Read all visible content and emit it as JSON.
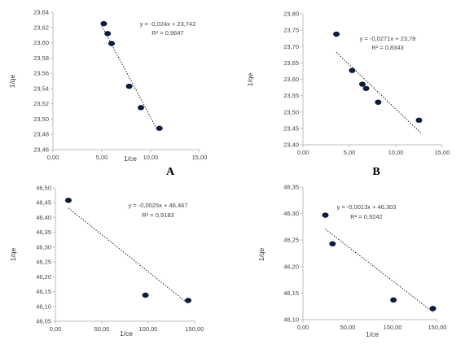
{
  "chart_data": [
    {
      "type": "scatter",
      "panel_label": "A",
      "xlabel": "1/ce",
      "ylabel": "1/qe",
      "xlim": [
        0,
        15
      ],
      "ylim": [
        23.46,
        23.64
      ],
      "xticks": [
        "0,00",
        "5,00",
        "10,00",
        "15,00"
      ],
      "xtick_values": [
        0,
        5,
        10,
        15
      ],
      "yticks": [
        "23,46",
        "23,48",
        "23,50",
        "23,52",
        "23,54",
        "23,56",
        "23,58",
        "23,60",
        "23,62",
        "23,64"
      ],
      "ytick_values": [
        23.46,
        23.48,
        23.5,
        23.52,
        23.54,
        23.56,
        23.58,
        23.6,
        23.62,
        23.64
      ],
      "equation": "y = -0,024x + 23,742",
      "r2": "R² = 0,9647",
      "trend": {
        "slope": -0.024,
        "intercept": 23.742,
        "x_range": [
          5.0,
          10.7
        ]
      },
      "series": [
        {
          "x": [
            5.2,
            5.6,
            6.0,
            7.8,
            9.0,
            10.9
          ],
          "y": [
            23.625,
            23.612,
            23.599,
            23.543,
            23.515,
            23.488
          ]
        }
      ],
      "grid": false
    },
    {
      "type": "scatter",
      "panel_label": "B",
      "xlabel": "1/ce",
      "ylabel": "1/qe",
      "xlim": [
        0,
        15
      ],
      "ylim": [
        23.4,
        23.8
      ],
      "xticks": [
        "0,00",
        "5,00",
        "10,00",
        "15,00"
      ],
      "xtick_values": [
        0,
        5,
        10,
        15
      ],
      "yticks": [
        "23,40",
        "23,45",
        "23,50",
        "23,55",
        "23,60",
        "23,65",
        "23,70",
        "23,75",
        "23,80"
      ],
      "ytick_values": [
        23.4,
        23.45,
        23.5,
        23.55,
        23.6,
        23.65,
        23.7,
        23.75,
        23.8
      ],
      "equation": "y = -0,0271x + 23,78",
      "r2": "R² = 0,8343",
      "trend": {
        "slope": -0.0271,
        "intercept": 23.78,
        "x_range": [
          3.6,
          12.7
        ]
      },
      "series": [
        {
          "x": [
            3.6,
            5.3,
            6.4,
            6.8,
            8.1,
            12.5
          ],
          "y": [
            23.738,
            23.627,
            23.585,
            23.572,
            23.53,
            23.475
          ]
        }
      ],
      "grid": false
    },
    {
      "type": "scatter",
      "panel_label": "",
      "xlabel": "1/ce",
      "ylabel": "1/qe",
      "xlim": [
        0,
        150
      ],
      "ylim": [
        46.05,
        46.5
      ],
      "xticks": [
        "0,00",
        "50,00",
        "100,00",
        "150,00"
      ],
      "xtick_values": [
        0,
        50,
        100,
        150
      ],
      "yticks": [
        "46,05",
        "46,10",
        "46,15",
        "46,20",
        "46,25",
        "46,30",
        "46,35",
        "46,40",
        "46,45",
        "46,50"
      ],
      "ytick_values": [
        46.05,
        46.1,
        46.15,
        46.2,
        46.25,
        46.3,
        46.35,
        46.4,
        46.45,
        46.5
      ],
      "equation": "y = -0,0025x + 46,467",
      "r2": "R² = 0,9183",
      "trend": {
        "slope": -0.0025,
        "intercept": 46.467,
        "x_range": [
          14,
          143
        ]
      },
      "series": [
        {
          "x": [
            14,
            97,
            143
          ],
          "y": [
            46.458,
            46.138,
            46.12
          ]
        }
      ],
      "grid": false
    },
    {
      "type": "scatter",
      "panel_label": "",
      "xlabel": "1/ce",
      "ylabel": "1/qe",
      "xlim": [
        0,
        150
      ],
      "ylim": [
        46.1,
        46.35
      ],
      "xticks": [
        "0,00",
        "50,00",
        "100,00",
        "150,00"
      ],
      "xtick_values": [
        0,
        50,
        100,
        150
      ],
      "yticks": [
        "46,10",
        "46,15",
        "46,20",
        "46,25",
        "46,30",
        "46,35"
      ],
      "ytick_values": [
        46.1,
        46.15,
        46.2,
        46.25,
        46.3,
        46.35
      ],
      "equation": "y = -0,0013x + 46,303",
      "r2": "R² = 0,9242",
      "trend": {
        "slope": -0.0013,
        "intercept": 46.303,
        "x_range": [
          25,
          145
        ]
      },
      "series": [
        {
          "x": [
            25,
            33,
            101,
            145
          ],
          "y": [
            46.297,
            46.243,
            46.137,
            46.121
          ]
        }
      ],
      "grid": false
    }
  ],
  "colors": {
    "marker": "#0d1b3d",
    "trendline": "#222222",
    "axis": "#bdbdbd",
    "text": "#444444"
  }
}
